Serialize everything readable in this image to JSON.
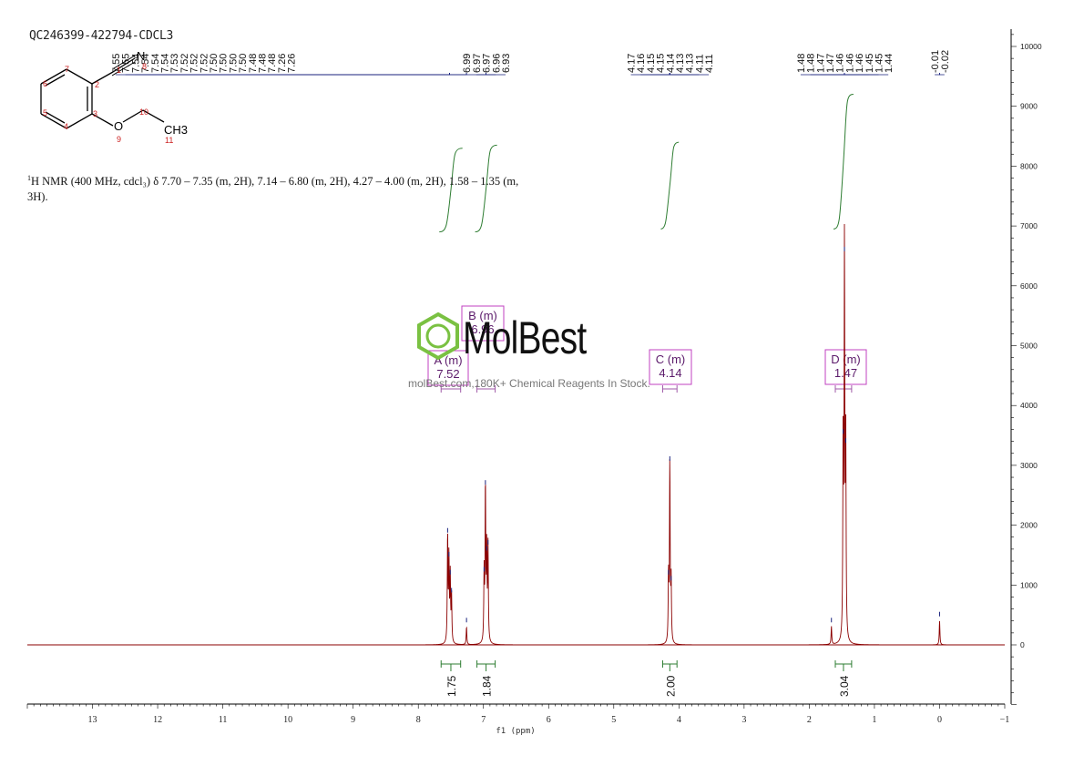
{
  "sample_id": "QC246399-422794-CDCL3",
  "nmr_text": "H NMR (400 MHz, cdcl₃) δ 7.70 – 7.35 (m, 2H), 7.14 – 6.80 (m, 2H), 4.27 – 4.00 (m, 2H), 1.58 – 1.35 (m, 3H).",
  "nmr_text_sup": "1",
  "watermark": {
    "brand": "MolBest",
    "tagline": "molBest.com,180K+ Chemical Reagents In Stock."
  },
  "structure": {
    "atoms": [
      "N",
      "O",
      "CH3"
    ],
    "numbers": [
      "1",
      "2",
      "3",
      "4",
      "5",
      "6",
      "7",
      "8",
      "9",
      "10",
      "11"
    ]
  },
  "colors": {
    "spectrum": "#8b0000",
    "peak_labels": "#1a237e",
    "integral": "#2e7d32",
    "multiplet_box": "#c040c0",
    "atom_numbers": "#cc2222"
  },
  "chart_data": {
    "type": "line",
    "xlabel": "f1 (ppm)",
    "ylabel": "",
    "xlim": [
      14,
      -1
    ],
    "ylim": [
      -1000,
      10500
    ],
    "x_ticks": [
      13,
      12,
      11,
      10,
      9,
      8,
      7,
      6,
      5,
      4,
      3,
      2,
      1,
      0,
      -1
    ],
    "y_ticks": [
      0,
      1000,
      2000,
      3000,
      4000,
      5000,
      6000,
      7000,
      8000,
      9000,
      10000
    ],
    "peaks": [
      {
        "shift": 7.55,
        "height": 1800
      },
      {
        "shift": 7.53,
        "height": 1400
      },
      {
        "shift": 7.51,
        "height": 1100
      },
      {
        "shift": 7.49,
        "height": 800
      },
      {
        "shift": 7.26,
        "height": 300
      },
      {
        "shift": 6.99,
        "height": 1150
      },
      {
        "shift": 6.97,
        "height": 2600
      },
      {
        "shift": 6.95,
        "height": 1500
      },
      {
        "shift": 6.93,
        "height": 1600
      },
      {
        "shift": 4.16,
        "height": 1100
      },
      {
        "shift": 4.14,
        "height": 3000
      },
      {
        "shift": 4.12,
        "height": 1000
      },
      {
        "shift": 1.66,
        "height": 300
      },
      {
        "shift": 1.48,
        "height": 3450
      },
      {
        "shift": 1.46,
        "height": 6500
      },
      {
        "shift": 1.44,
        "height": 3300
      },
      {
        "shift": 0.0,
        "height": 400
      }
    ],
    "peak_label_groups": [
      {
        "labels": [
          "7.55",
          "7.55",
          "7.54",
          "7.54",
          "7.54",
          "7.54",
          "7.53",
          "7.52",
          "7.52",
          "7.52",
          "7.50",
          "7.50",
          "7.50",
          "7.50",
          "7.48",
          "7.48",
          "7.48",
          "7.26",
          "7.26"
        ],
        "target_shifts": [
          7.52,
          7.26
        ]
      },
      {
        "labels": [
          "6.99",
          "6.97",
          "6.97",
          "6.96",
          "6.93"
        ],
        "target_shifts": [
          6.96
        ]
      },
      {
        "labels": [
          "4.17",
          "4.16",
          "4.15",
          "4.15",
          "4.14",
          "4.13",
          "4.13",
          "4.11",
          "4.11"
        ],
        "target_shifts": [
          4.14
        ]
      },
      {
        "labels": [
          "1.48",
          "1.48",
          "1.47",
          "1.47",
          "1.46",
          "1.46",
          "1.46",
          "1.45",
          "1.45",
          "1.44"
        ],
        "target_shifts": [
          1.46
        ]
      },
      {
        "labels": [
          "-0.01",
          "-0.02"
        ],
        "target_shifts": [
          0.0
        ]
      }
    ],
    "multiplets": [
      {
        "letter": "A (m)",
        "shift": "7.52",
        "from": 7.65,
        "to": 7.35
      },
      {
        "letter": "B (m)",
        "shift": "6.96",
        "from": 7.1,
        "to": 6.82
      },
      {
        "letter": "C (m)",
        "shift": "4.14",
        "from": 4.25,
        "to": 4.03
      },
      {
        "letter": "D (m)",
        "shift": "1.47",
        "from": 1.6,
        "to": 1.35
      }
    ],
    "integrals": [
      {
        "value": "1.75",
        "from": 7.65,
        "to": 7.35,
        "curve_bottom": 6900,
        "curve_top": 8300
      },
      {
        "value": "1.84",
        "from": 7.1,
        "to": 6.82,
        "curve_bottom": 6900,
        "curve_top": 8350
      },
      {
        "value": "2.00",
        "from": 4.25,
        "to": 4.03,
        "curve_bottom": 6950,
        "curve_top": 8400
      },
      {
        "value": "3.04",
        "from": 1.6,
        "to": 1.35,
        "curve_bottom": 6950,
        "curve_top": 9200
      }
    ]
  }
}
